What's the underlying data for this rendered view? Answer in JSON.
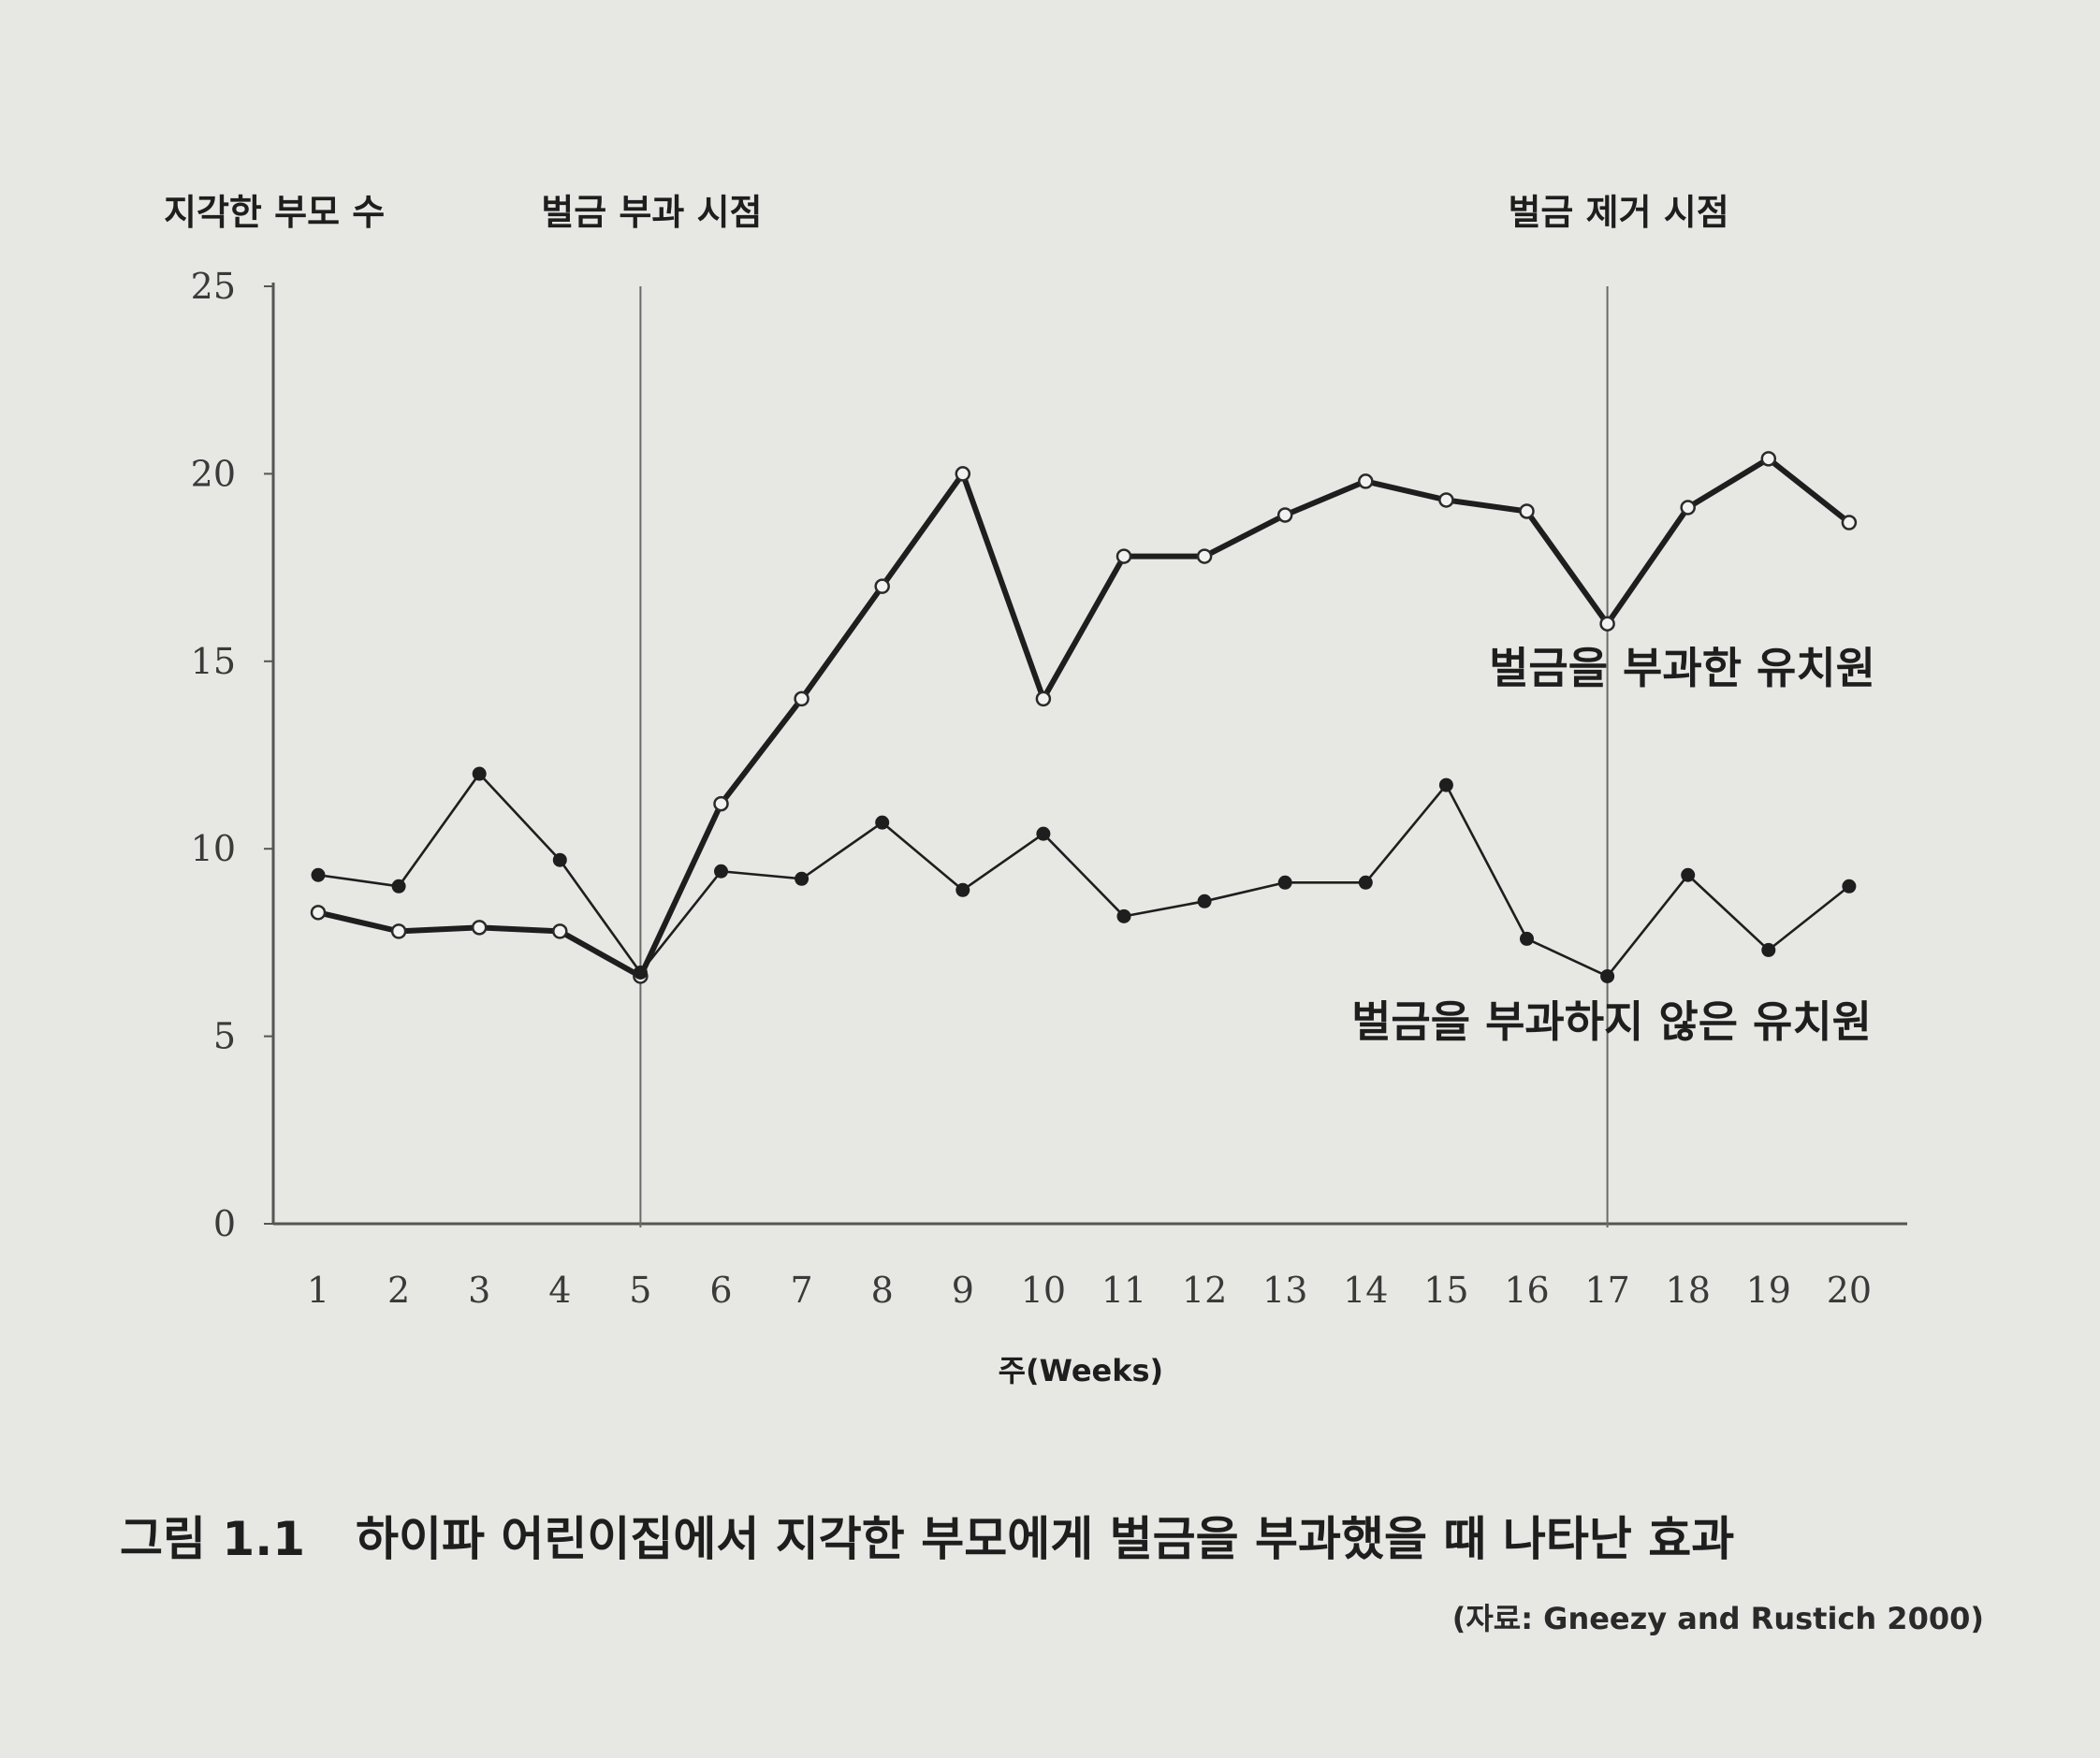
{
  "chart_data": {
    "type": "line",
    "ylabel": "지각한 부모 수",
    "xlabel": "주(Weeks)",
    "ylim": [
      0,
      25
    ],
    "yticks": [
      0,
      5,
      10,
      15,
      20,
      25
    ],
    "xlim": [
      1,
      20
    ],
    "x": [
      1,
      2,
      3,
      4,
      5,
      6,
      7,
      8,
      9,
      10,
      11,
      12,
      13,
      14,
      15,
      16,
      17,
      18,
      19,
      20
    ],
    "xtick_labels": [
      "1",
      "2",
      "3",
      "4",
      "5",
      "6",
      "7",
      "8",
      "9",
      "10",
      "11",
      "12",
      "13",
      "14",
      "15",
      "16",
      "17",
      "18",
      "19",
      "20"
    ],
    "grid": false,
    "annotations": [
      {
        "text": "벌금 부과 시점",
        "x": 5
      },
      {
        "text": "벌금 제거 시점",
        "x": 17
      }
    ],
    "series": [
      {
        "name": "벌금을 부과한 유치원",
        "marker": "open-circle",
        "line": "thick",
        "values": [
          8.3,
          7.8,
          7.9,
          7.8,
          6.6,
          11.2,
          14,
          17,
          20,
          14,
          17.8,
          17.8,
          18.9,
          19.8,
          19.3,
          19,
          16,
          19.1,
          20.4,
          18.7
        ]
      },
      {
        "name": "벌금을 부과하지 않은 유치원",
        "marker": "filled-circle",
        "line": "thin",
        "values": [
          9.3,
          9,
          12,
          9.7,
          6.7,
          9.4,
          9.2,
          10.7,
          8.9,
          10.4,
          8.2,
          8.6,
          9.1,
          9.1,
          11.7,
          7.6,
          6.6,
          9.3,
          7.3,
          9
        ]
      }
    ]
  },
  "caption": {
    "figure_number": "그림 1.1",
    "text": "하이파 어린이집에서 지각한 부모에게 벌금을 부과했을 때 나타난 효과"
  },
  "source": "(자료: Gneezy and Rustich 2000)",
  "colors": {
    "background": "#e7e7e4",
    "ink": "#1e1e1e",
    "axis": "#555555",
    "open_marker_fill": "#f2f2f0"
  }
}
